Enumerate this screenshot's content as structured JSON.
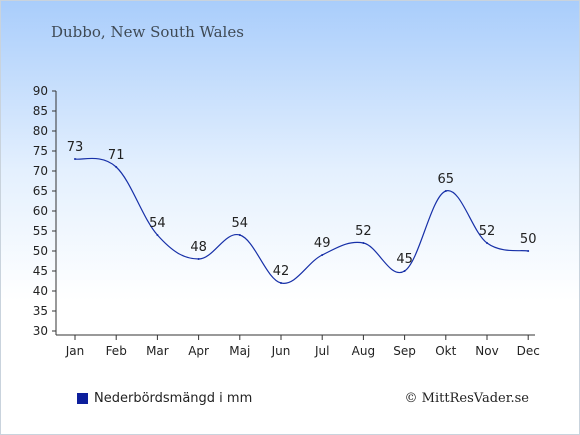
{
  "title": "Dubbo, New South Wales",
  "credit": "© MittResVader.se",
  "colors": {
    "series": "#1730a8",
    "legend_swatch": "#0d1f9c"
  },
  "chart_data": {
    "type": "line",
    "categories": [
      "Jan",
      "Feb",
      "Mar",
      "Apr",
      "Maj",
      "Jun",
      "Jul",
      "Aug",
      "Sep",
      "Okt",
      "Nov",
      "Dec"
    ],
    "series": [
      {
        "name": "Nederbördsmängd i mm",
        "values": [
          73,
          71,
          54,
          48,
          54,
          42,
          49,
          52,
          45,
          65,
          52,
          50
        ]
      }
    ],
    "ylim": [
      30,
      90
    ],
    "yticks": [
      30,
      35,
      40,
      45,
      50,
      55,
      60,
      65,
      70,
      75,
      80,
      85,
      90
    ],
    "grid": false,
    "legend_position": "bottom-left"
  }
}
